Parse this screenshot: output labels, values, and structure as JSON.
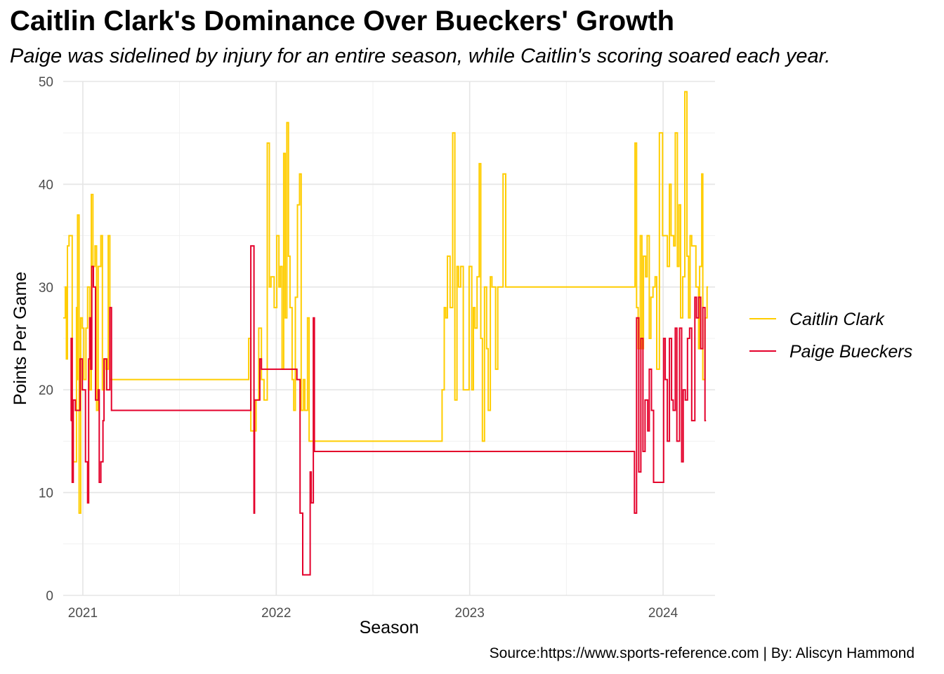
{
  "chart_data": {
    "type": "line",
    "step": true,
    "title": "Caitlin Clark's Dominance Over Bueckers' Growth",
    "subtitle": "Paige was sidelined by injury for an entire season, while Caitlin's scoring soared each year.",
    "caption": "Source:https://www.sports-reference.com | By: Aliscyn Hammond",
    "xlabel": "Season",
    "ylabel": "Points Per Game",
    "x_type": "date",
    "xlim": [
      "2020-11-25",
      "2024-04-08"
    ],
    "ylim": [
      0,
      50
    ],
    "x_ticks": [
      "2021-01-01",
      "2022-01-01",
      "2023-01-01",
      "2024-01-01"
    ],
    "x_tick_labels": [
      "2021",
      "2022",
      "2023",
      "2024"
    ],
    "y_ticks": [
      0,
      10,
      20,
      30,
      40,
      50
    ],
    "y_tick_labels": [
      "0",
      "10",
      "20",
      "30",
      "40",
      "50"
    ],
    "grid": true,
    "legend_position": "right",
    "series": [
      {
        "name": "Caitlin Clark",
        "color": "#FFCD00",
        "points": [
          [
            "2020-11-25",
            27
          ],
          [
            "2020-11-29",
            30
          ],
          [
            "2020-12-01",
            23
          ],
          [
            "2020-12-03",
            34
          ],
          [
            "2020-12-06",
            35
          ],
          [
            "2020-12-12",
            18
          ],
          [
            "2020-12-14",
            13
          ],
          [
            "2020-12-20",
            28
          ],
          [
            "2020-12-21",
            21
          ],
          [
            "2020-12-22",
            37
          ],
          [
            "2020-12-25",
            8
          ],
          [
            "2020-12-28",
            27
          ],
          [
            "2020-12-31",
            26
          ],
          [
            "2021-01-03",
            21
          ],
          [
            "2021-01-07",
            26
          ],
          [
            "2021-01-10",
            30
          ],
          [
            "2021-01-14",
            20
          ],
          [
            "2021-01-17",
            39
          ],
          [
            "2021-01-20",
            32
          ],
          [
            "2021-01-24",
            34
          ],
          [
            "2021-01-27",
            18
          ],
          [
            "2021-01-30",
            32
          ],
          [
            "2021-02-04",
            35
          ],
          [
            "2021-02-07",
            20
          ],
          [
            "2021-02-11",
            23
          ],
          [
            "2021-02-14",
            22
          ],
          [
            "2021-02-18",
            35
          ],
          [
            "2021-02-21",
            21
          ],
          [
            "2021-11-09",
            21
          ],
          [
            "2021-11-10",
            25
          ],
          [
            "2021-11-14",
            16
          ],
          [
            "2021-11-18",
            16
          ],
          [
            "2021-11-24",
            19
          ],
          [
            "2021-11-29",
            26
          ],
          [
            "2021-12-04",
            21
          ],
          [
            "2021-12-09",
            19
          ],
          [
            "2021-12-12",
            19
          ],
          [
            "2021-12-15",
            44
          ],
          [
            "2021-12-19",
            30
          ],
          [
            "2021-12-22",
            31
          ],
          [
            "2021-12-28",
            28
          ],
          [
            "2022-01-02",
            35
          ],
          [
            "2022-01-06",
            30
          ],
          [
            "2022-01-09",
            32
          ],
          [
            "2022-01-12",
            22
          ],
          [
            "2022-01-15",
            43
          ],
          [
            "2022-01-18",
            27
          ],
          [
            "2022-01-21",
            46
          ],
          [
            "2022-01-24",
            33
          ],
          [
            "2022-01-27",
            28
          ],
          [
            "2022-01-31",
            21
          ],
          [
            "2022-02-03",
            18
          ],
          [
            "2022-02-06",
            29
          ],
          [
            "2022-02-10",
            38
          ],
          [
            "2022-02-14",
            41
          ],
          [
            "2022-02-17",
            18
          ],
          [
            "2022-02-21",
            21
          ],
          [
            "2022-02-24",
            18
          ],
          [
            "2022-03-01",
            27
          ],
          [
            "2022-03-04",
            15
          ],
          [
            "2022-11-07",
            15
          ],
          [
            "2022-11-10",
            20
          ],
          [
            "2022-11-14",
            28
          ],
          [
            "2022-11-17",
            27
          ],
          [
            "2022-11-20",
            33
          ],
          [
            "2022-11-25",
            28
          ],
          [
            "2022-11-30",
            45
          ],
          [
            "2022-12-04",
            19
          ],
          [
            "2022-12-08",
            32
          ],
          [
            "2022-12-11",
            30
          ],
          [
            "2022-12-15",
            32
          ],
          [
            "2022-12-20",
            20
          ],
          [
            "2022-12-31",
            32
          ],
          [
            "2023-01-05",
            20
          ],
          [
            "2023-01-08",
            28
          ],
          [
            "2023-01-11",
            26
          ],
          [
            "2023-01-15",
            31
          ],
          [
            "2023-01-19",
            42
          ],
          [
            "2023-01-22",
            25
          ],
          [
            "2023-01-25",
            15
          ],
          [
            "2023-01-29",
            30
          ],
          [
            "2023-02-02",
            24
          ],
          [
            "2023-02-05",
            18
          ],
          [
            "2023-02-09",
            31
          ],
          [
            "2023-02-12",
            30
          ],
          [
            "2023-02-16",
            30
          ],
          [
            "2023-02-19",
            22
          ],
          [
            "2023-02-23",
            30
          ],
          [
            "2023-03-01",
            30
          ],
          [
            "2023-03-05",
            41
          ],
          [
            "2023-03-10",
            30
          ],
          [
            "2023-11-06",
            30
          ],
          [
            "2023-11-09",
            44
          ],
          [
            "2023-11-12",
            28
          ],
          [
            "2023-11-15",
            24
          ],
          [
            "2023-11-19",
            35
          ],
          [
            "2023-11-22",
            24
          ],
          [
            "2023-11-25",
            33
          ],
          [
            "2023-11-29",
            31
          ],
          [
            "2023-12-02",
            35
          ],
          [
            "2023-12-06",
            25
          ],
          [
            "2023-12-09",
            29
          ],
          [
            "2023-12-13",
            30
          ],
          [
            "2023-12-17",
            31
          ],
          [
            "2023-12-20",
            22
          ],
          [
            "2023-12-25",
            45
          ],
          [
            "2023-12-31",
            35
          ],
          [
            "2024-01-06",
            35
          ],
          [
            "2024-01-09",
            32
          ],
          [
            "2024-01-13",
            40
          ],
          [
            "2024-01-16",
            35
          ],
          [
            "2024-01-21",
            34
          ],
          [
            "2024-01-24",
            45
          ],
          [
            "2024-01-28",
            32
          ],
          [
            "2024-01-31",
            38
          ],
          [
            "2024-02-03",
            27
          ],
          [
            "2024-02-07",
            31
          ],
          [
            "2024-02-11",
            49
          ],
          [
            "2024-02-15",
            33
          ],
          [
            "2024-02-18",
            27
          ],
          [
            "2024-02-21",
            35
          ],
          [
            "2024-02-24",
            34
          ],
          [
            "2024-03-01",
            34
          ],
          [
            "2024-03-03",
            30
          ],
          [
            "2024-03-08",
            24
          ],
          [
            "2024-03-10",
            32
          ],
          [
            "2024-03-14",
            41
          ],
          [
            "2024-03-16",
            21
          ],
          [
            "2024-03-20",
            27
          ],
          [
            "2024-03-24",
            30
          ]
        ]
      },
      {
        "name": "Paige Bueckers",
        "color": "#E4002B",
        "points": [
          [
            "2020-12-09",
            17
          ],
          [
            "2020-12-10",
            25
          ],
          [
            "2020-12-12",
            11
          ],
          [
            "2020-12-14",
            19
          ],
          [
            "2020-12-18",
            18
          ],
          [
            "2020-12-20",
            18
          ],
          [
            "2020-12-27",
            23
          ],
          [
            "2020-12-31",
            20
          ],
          [
            "2021-01-06",
            13
          ],
          [
            "2021-01-10",
            9
          ],
          [
            "2021-01-12",
            23
          ],
          [
            "2021-01-14",
            27
          ],
          [
            "2021-01-16",
            22
          ],
          [
            "2021-01-18",
            32
          ],
          [
            "2021-01-21",
            30
          ],
          [
            "2021-01-25",
            19
          ],
          [
            "2021-01-30",
            20
          ],
          [
            "2021-02-01",
            11
          ],
          [
            "2021-02-04",
            13
          ],
          [
            "2021-02-08",
            17
          ],
          [
            "2021-02-10",
            23
          ],
          [
            "2021-02-15",
            20
          ],
          [
            "2021-02-21",
            28
          ],
          [
            "2021-02-24",
            18
          ],
          [
            "2021-11-14",
            34
          ],
          [
            "2021-11-20",
            8
          ],
          [
            "2021-11-21",
            19
          ],
          [
            "2021-12-01",
            23
          ],
          [
            "2021-12-04",
            22
          ],
          [
            "2022-02-09",
            21
          ],
          [
            "2022-02-15",
            8
          ],
          [
            "2022-02-20",
            2
          ],
          [
            "2022-02-27",
            2
          ],
          [
            "2022-03-06",
            12
          ],
          [
            "2022-03-08",
            9
          ],
          [
            "2022-03-12",
            27
          ],
          [
            "2022-03-14",
            14
          ],
          [
            "2023-11-08",
            8
          ],
          [
            "2023-11-12",
            27
          ],
          [
            "2023-11-16",
            12
          ],
          [
            "2023-11-20",
            25
          ],
          [
            "2023-11-24",
            14
          ],
          [
            "2023-11-28",
            19
          ],
          [
            "2023-12-03",
            16
          ],
          [
            "2023-12-06",
            22
          ],
          [
            "2023-12-10",
            18
          ],
          [
            "2023-12-14",
            11
          ],
          [
            "2023-12-20",
            11
          ],
          [
            "2024-01-02",
            25
          ],
          [
            "2024-01-05",
            21
          ],
          [
            "2024-01-09",
            15
          ],
          [
            "2024-01-13",
            25
          ],
          [
            "2024-01-17",
            19
          ],
          [
            "2024-01-20",
            18
          ],
          [
            "2024-01-24",
            26
          ],
          [
            "2024-01-27",
            15
          ],
          [
            "2024-02-01",
            26
          ],
          [
            "2024-02-05",
            13
          ],
          [
            "2024-02-08",
            20
          ],
          [
            "2024-02-12",
            19
          ],
          [
            "2024-02-16",
            25
          ],
          [
            "2024-02-20",
            26
          ],
          [
            "2024-02-24",
            17
          ],
          [
            "2024-03-01",
            29
          ],
          [
            "2024-03-04",
            27
          ],
          [
            "2024-03-08",
            29
          ],
          [
            "2024-03-12",
            24
          ],
          [
            "2024-03-16",
            28
          ],
          [
            "2024-03-20",
            17
          ]
        ]
      }
    ]
  }
}
